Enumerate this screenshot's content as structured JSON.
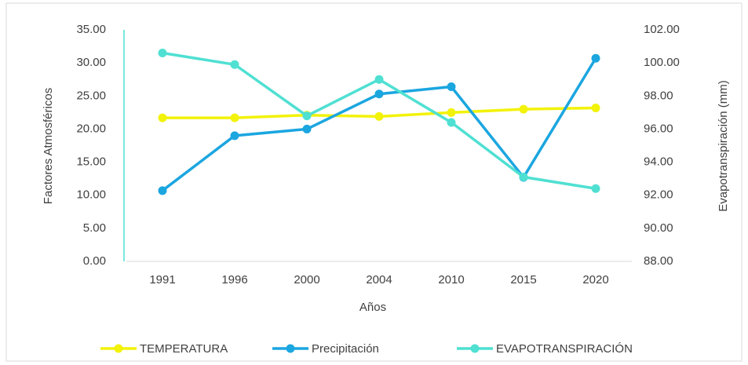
{
  "chart_data": {
    "type": "line",
    "categories": [
      "1991",
      "1996",
      "2000",
      "2004",
      "2010",
      "2015",
      "2020"
    ],
    "x_label": "Años",
    "y_label": "Factores Atmosféricos",
    "y2_label": "Evapotranspiración (mm)",
    "series": [
      {
        "name": "TEMPERATURA",
        "color": "#f2f20a",
        "values": [
          21.7,
          21.7,
          22.1,
          21.9,
          22.5,
          23.0,
          23.2
        ]
      },
      {
        "name": "Precipitación",
        "color": "#1ba6e0",
        "values": [
          10.7,
          19.0,
          20.0,
          25.3,
          26.4,
          12.7,
          30.7
        ]
      },
      {
        "name": "EVAPOTRANSPIRACIÓN",
        "color": "#4fe0d2",
        "axis": "y2",
        "values": [
          100.6,
          99.9,
          96.8,
          99.0,
          96.4,
          93.1,
          92.4
        ]
      }
    ],
    "ylim": [
      0,
      35
    ],
    "yticks": [
      {
        "value": 0,
        "label": "0.00"
      },
      {
        "value": 5,
        "label": "5.00"
      },
      {
        "value": 10,
        "label": "10.00"
      },
      {
        "value": 15,
        "label": "15.00"
      },
      {
        "value": 20,
        "label": "20.00"
      },
      {
        "value": 25,
        "label": "25.00"
      },
      {
        "value": 30,
        "label": "30.00"
      },
      {
        "value": 35,
        "label": "35.00"
      }
    ],
    "y2lim": [
      88,
      102
    ],
    "y2ticks": [
      {
        "value": 88,
        "label": "88.00"
      },
      {
        "value": 90,
        "label": "90.00"
      },
      {
        "value": 92,
        "label": "92.00"
      },
      {
        "value": 94,
        "label": "94.00"
      },
      {
        "value": 96,
        "label": "96.00"
      },
      {
        "value": 98,
        "label": "98.00"
      },
      {
        "value": 100,
        "label": "100.00"
      },
      {
        "value": 102,
        "label": "102.00"
      }
    ],
    "legend": "bottom"
  }
}
